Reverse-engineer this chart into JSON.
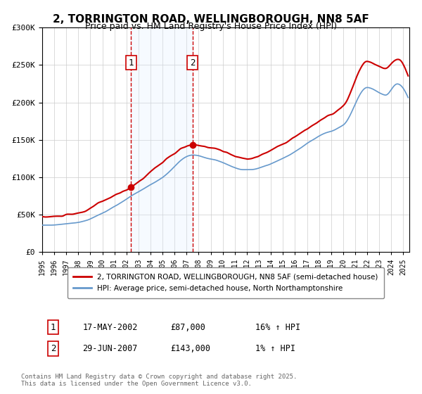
{
  "title": "2, TORRINGTON ROAD, WELLINGBOROUGH, NN8 5AF",
  "subtitle": "Price paid vs. HM Land Registry's House Price Index (HPI)",
  "xlabel": "",
  "ylabel": "",
  "ylim": [
    0,
    300000
  ],
  "xlim_start": 1995.0,
  "xlim_end": 2025.5,
  "sale1_date": 2002.38,
  "sale1_price": 87000,
  "sale1_label": "1",
  "sale1_info": "17-MAY-2002",
  "sale1_price_str": "£87,000",
  "sale1_hpi": "16% ↑ HPI",
  "sale2_date": 2007.49,
  "sale2_price": 143000,
  "sale2_label": "2",
  "sale2_info": "29-JUN-2007",
  "sale2_price_str": "£143,000",
  "sale2_hpi": "1% ↑ HPI",
  "red_line_color": "#cc0000",
  "blue_line_color": "#6699cc",
  "shade_color": "#ddeeff",
  "vline_color": "#cc0000",
  "legend_label1": "2, TORRINGTON ROAD, WELLINGBOROUGH, NN8 5AF (semi-detached house)",
  "legend_label2": "HPI: Average price, semi-detached house, North Northamptonshire",
  "footer": "Contains HM Land Registry data © Crown copyright and database right 2025.\nThis data is licensed under the Open Government Licence v3.0.",
  "bg_color": "#ffffff",
  "plot_bg_color": "#ffffff",
  "grid_color": "#cccccc"
}
